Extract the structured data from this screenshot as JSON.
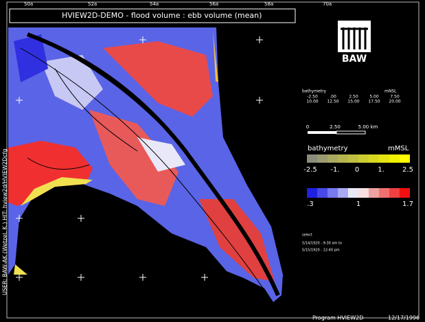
{
  "title": "HVIEW2D-DEMO - flood volume : ebb volume (mean)",
  "logo": "BAW",
  "side_label": "USER: BAW-AK (Wetzel, K.)   HIT: hview2d/HVIEW2Dcfg",
  "top_labels": [
    "50a",
    "52a",
    "54a",
    "56a",
    "58a",
    "70a"
  ],
  "info": {
    "header": [
      "bathymetry",
      "mNSL"
    ],
    "row1": [
      "-2.50",
      ".00",
      "2.50",
      "5.00",
      "7.50"
    ],
    "row2": [
      "10.00",
      "12.50",
      "15.00",
      "17.50",
      "20.00"
    ]
  },
  "scale_bar": {
    "labels": [
      "0",
      "2.50",
      "5.00 km"
    ]
  },
  "bathymetry_legend": {
    "title": "bathymetry",
    "unit": "mMSL",
    "labels": [
      "-2.5",
      "-1.",
      "0",
      "1.",
      "2.5"
    ]
  },
  "ratio_legend": {
    "labels": [
      ".3",
      "1",
      "1.7"
    ]
  },
  "period": {
    "title": "select",
    "lines": [
      "5/14/1920 - 9:30 am to",
      "5/15/1920 - 12:40 pm"
    ]
  },
  "footer": {
    "program": "Program   HVIEW2D",
    "date": "12/17/1996"
  }
}
